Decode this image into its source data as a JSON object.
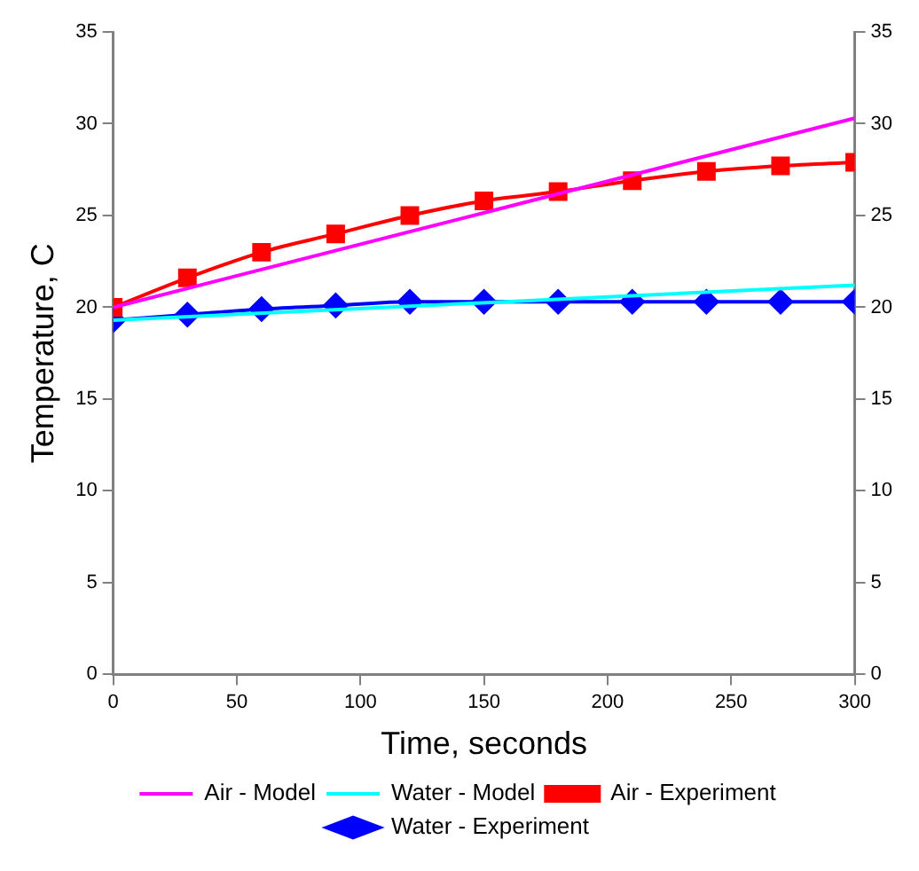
{
  "chart_data": {
    "type": "line",
    "xlabel": "Time, seconds",
    "ylabel": "Temperature, C",
    "xlim": [
      0,
      300
    ],
    "xticks": [
      0,
      50,
      100,
      150,
      200,
      250,
      300
    ],
    "ylim": [
      0,
      35
    ],
    "yticks": [
      0,
      5,
      10,
      15,
      20,
      25,
      30,
      35
    ],
    "y2lim": [
      0,
      35
    ],
    "y2ticks": [
      0,
      5,
      10,
      15,
      20,
      25,
      30,
      35
    ],
    "grid": false,
    "legend": "bottom",
    "series": [
      {
        "name": "Air - Experiment",
        "color": "#ff0000",
        "marker": "square",
        "x": [
          0,
          30,
          60,
          90,
          120,
          150,
          180,
          210,
          240,
          270,
          300
        ],
        "values": [
          20.0,
          21.6,
          23.0,
          24.0,
          25.0,
          25.8,
          26.3,
          26.9,
          27.4,
          27.7,
          27.9
        ]
      },
      {
        "name": "Air - Model",
        "color": "#ff00ff",
        "marker": "none",
        "x": [
          0,
          300
        ],
        "values": [
          20.0,
          30.3
        ]
      },
      {
        "name": "Water - Experiment",
        "color": "#0000ff",
        "marker": "diamond",
        "x": [
          0,
          30,
          60,
          90,
          120,
          150,
          180,
          210,
          240,
          270,
          300
        ],
        "values": [
          19.3,
          19.6,
          19.9,
          20.1,
          20.3,
          20.3,
          20.3,
          20.3,
          20.3,
          20.3,
          20.3
        ]
      },
      {
        "name": "Water - Model",
        "color": "#00ffff",
        "marker": "none",
        "x": [
          0,
          300
        ],
        "values": [
          19.3,
          21.2
        ]
      }
    ]
  }
}
